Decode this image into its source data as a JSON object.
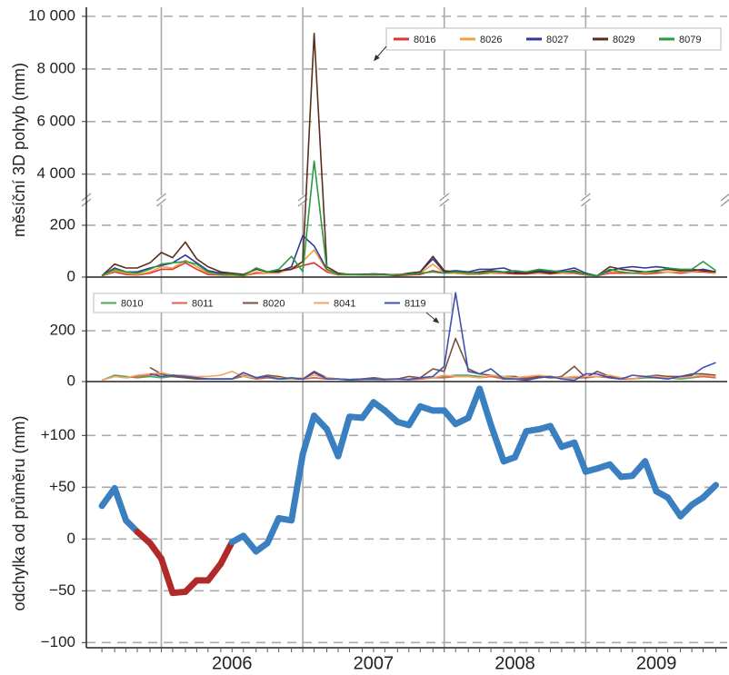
{
  "chart_data": {
    "type": "line",
    "x": [
      2005.58,
      2005.67,
      2005.75,
      2005.83,
      2005.92,
      2006.0,
      2006.08,
      2006.17,
      2006.25,
      2006.33,
      2006.42,
      2006.5,
      2006.58,
      2006.67,
      2006.75,
      2006.83,
      2006.92,
      2007.0,
      2007.08,
      2007.17,
      2007.25,
      2007.33,
      2007.42,
      2007.5,
      2007.58,
      2007.67,
      2007.75,
      2007.83,
      2007.92,
      2008.0,
      2008.08,
      2008.17,
      2008.25,
      2008.33,
      2008.42,
      2008.5,
      2008.58,
      2008.67,
      2008.75,
      2008.83,
      2008.92,
      2009.0,
      2009.08,
      2009.17,
      2009.25,
      2009.33,
      2009.42,
      2009.5,
      2009.58,
      2009.67,
      2009.75,
      2009.83,
      2009.92
    ],
    "xlim": [
      2005.47,
      2010.0
    ],
    "xgrid": [
      2006,
      2007,
      2008,
      2009
    ],
    "xticks": [
      {
        "value": 2006.5,
        "label": "2006"
      },
      {
        "value": 2007.5,
        "label": "2007"
      },
      {
        "value": 2008.5,
        "label": "2008"
      },
      {
        "value": 2009.5,
        "label": "2009"
      }
    ],
    "panels": [
      {
        "ylabel": "měsíční 3D pohyb (mm)",
        "ylim": [
          0,
          10000
        ],
        "ybreak": [
          270,
          3300
        ],
        "yticks": [
          0,
          200,
          {
            "value": 4000,
            "label": "4 000"
          },
          {
            "value": 6000,
            "label": "6 000"
          },
          {
            "value": 8000,
            "label": "8 000"
          },
          {
            "value": 10000,
            "label": "10 000"
          }
        ],
        "legend": "upper right",
        "series": [
          {
            "name": "8016",
            "color": "#e03434",
            "values": [
              5,
              20,
              10,
              8,
              15,
              30,
              30,
              55,
              30,
              10,
              8,
              5,
              5,
              15,
              15,
              20,
              30,
              45,
              55,
              20,
              8,
              8,
              8,
              8,
              8,
              5,
              8,
              10,
              25,
              15,
              15,
              10,
              12,
              15,
              15,
              12,
              12,
              15,
              12,
              15,
              15,
              8,
              5,
              15,
              15,
              15,
              12,
              15,
              20,
              15,
              20,
              20,
              15
            ]
          },
          {
            "name": "8026",
            "color": "#f5a040",
            "values": [
              5,
              25,
              15,
              10,
              20,
              40,
              35,
              65,
              40,
              15,
              10,
              5,
              5,
              20,
              15,
              15,
              35,
              60,
              105,
              25,
              8,
              8,
              8,
              10,
              8,
              8,
              10,
              15,
              50,
              15,
              15,
              10,
              15,
              15,
              20,
              15,
              15,
              15,
              15,
              15,
              20,
              8,
              5,
              20,
              20,
              15,
              15,
              20,
              20,
              20,
              20,
              25,
              15
            ]
          },
          {
            "name": "8027",
            "color": "#2b3a9c",
            "values": [
              5,
              35,
              20,
              20,
              35,
              45,
              55,
              85,
              55,
              25,
              15,
              10,
              5,
              35,
              20,
              20,
              40,
              160,
              120,
              30,
              10,
              10,
              10,
              12,
              10,
              8,
              12,
              20,
              70,
              20,
              25,
              20,
              30,
              30,
              35,
              20,
              20,
              25,
              20,
              25,
              35,
              15,
              5,
              25,
              35,
              40,
              35,
              40,
              35,
              25,
              25,
              30,
              20
            ]
          },
          {
            "name": "8029",
            "color": "#5a2e1e",
            "values": [
              5,
              50,
              35,
              35,
              55,
              95,
              75,
              135,
              70,
              40,
              20,
              15,
              10,
              30,
              20,
              25,
              30,
              60,
              9350,
              40,
              15,
              10,
              10,
              12,
              10,
              8,
              15,
              20,
              80,
              25,
              20,
              15,
              20,
              25,
              20,
              15,
              15,
              20,
              15,
              20,
              25,
              10,
              5,
              40,
              30,
              25,
              20,
              25,
              30,
              25,
              30,
              25,
              20
            ]
          },
          {
            "name": "8079",
            "color": "#2a9a42",
            "values": [
              5,
              30,
              20,
              15,
              30,
              50,
              55,
              60,
              50,
              20,
              10,
              10,
              5,
              35,
              20,
              30,
              80,
              300,
              4500,
              30,
              10,
              10,
              8,
              10,
              8,
              10,
              10,
              15,
              20,
              15,
              20,
              15,
              15,
              20,
              20,
              25,
              20,
              30,
              25,
              20,
              20,
              10,
              5,
              30,
              20,
              15,
              20,
              20,
              35,
              30,
              30,
              60,
              25
            ]
          }
        ]
      },
      {
        "ylim": [
          0,
          358
        ],
        "yticks": [
          0,
          200
        ],
        "legend": "upper left",
        "series": [
          {
            "name": "8010",
            "color": "#4aaa55",
            "values": [
              5,
              25,
              20,
              15,
              20,
              15,
              20,
              15,
              10,
              10,
              10,
              10,
              20,
              10,
              15,
              10,
              10,
              10,
              15,
              10,
              10,
              5,
              8,
              8,
              8,
              10,
              8,
              10,
              15,
              20,
              25,
              25,
              20,
              20,
              15,
              15,
              15,
              20,
              20,
              15,
              15,
              15,
              20,
              20,
              15,
              10,
              15,
              15,
              15,
              10,
              15,
              20,
              15
            ]
          },
          {
            "name": "8011",
            "color": "#e06050",
            "values": [
              5,
              20,
              15,
              20,
              25,
              30,
              25,
              20,
              15,
              10,
              10,
              10,
              25,
              10,
              15,
              15,
              10,
              10,
              15,
              10,
              10,
              8,
              8,
              10,
              10,
              10,
              8,
              10,
              15,
              15,
              20,
              20,
              15,
              20,
              10,
              10,
              15,
              20,
              15,
              15,
              15,
              15,
              20,
              15,
              10,
              10,
              20,
              15,
              20,
              15,
              20,
              20,
              15
            ]
          },
          {
            "name": "8020",
            "color": "#7a5040",
            "values": [
              null,
              null,
              null,
              null,
              55,
              30,
              20,
              15,
              10,
              10,
              10,
              10,
              35,
              15,
              25,
              20,
              10,
              10,
              40,
              15,
              10,
              8,
              10,
              15,
              10,
              10,
              20,
              15,
              50,
              40,
              170,
              50,
              30,
              25,
              20,
              20,
              10,
              20,
              15,
              20,
              60,
              15,
              40,
              20,
              15,
              10,
              20,
              25,
              20,
              20,
              30,
              30,
              25
            ]
          },
          {
            "name": "8041",
            "color": "#f0a868",
            "values": [
              5,
              20,
              15,
              25,
              30,
              35,
              25,
              25,
              20,
              20,
              25,
              40,
              20,
              15,
              20,
              15,
              10,
              15,
              25,
              15,
              10,
              8,
              10,
              10,
              10,
              10,
              10,
              15,
              15,
              25,
              20,
              20,
              15,
              25,
              20,
              15,
              20,
              25,
              20,
              15,
              20,
              20,
              20,
              25,
              15,
              10,
              20,
              20,
              15,
              15,
              20,
              25,
              20
            ]
          },
          {
            "name": "8119",
            "color": "#4050b0",
            "values": [
              null,
              null,
              null,
              null,
              30,
              20,
              25,
              20,
              15,
              10,
              10,
              10,
              35,
              15,
              20,
              10,
              15,
              10,
              35,
              10,
              10,
              8,
              10,
              10,
              8,
              10,
              8,
              15,
              20,
              60,
              350,
              40,
              30,
              50,
              10,
              10,
              5,
              15,
              20,
              10,
              5,
              30,
              30,
              15,
              10,
              25,
              20,
              15,
              10,
              20,
              25,
              55,
              75
            ]
          }
        ]
      },
      {
        "ylabel": "odchylka od průměru (mm)",
        "ylim": [
          -105,
          152
        ],
        "yticks": [
          {
            "value": -100,
            "label": "−100"
          },
          {
            "value": -50,
            "label": "−50"
          },
          0,
          {
            "value": 50,
            "label": "+50"
          },
          {
            "value": 100,
            "label": "+100"
          }
        ],
        "series": [
          {
            "values": [
              32,
              49,
              18,
              7,
              -4,
              -19,
              -52,
              -51,
              -40,
              -40,
              -24,
              -3,
              3,
              -12,
              -4,
              20,
              18,
              82,
              119,
              106,
              80,
              118,
              117,
              132,
              124,
              113,
              110,
              128,
              124,
              124,
              111,
              117,
              145,
              110,
              75,
              79,
              104,
              106,
              109,
              89,
              93,
              65,
              68,
              72,
              60,
              61,
              75,
              46,
              40,
              22,
              33,
              40,
              52
            ],
            "colors": [
              "#3a7fc0",
              "#3a7fc0",
              "#3a7fc0",
              "#b02a2a",
              "#b02a2a",
              "#b02a2a",
              "#b02a2a",
              "#b02a2a",
              "#b02a2a",
              "#b02a2a",
              "#b02a2a",
              "#3a7fc0",
              "#3a7fc0",
              "#3a7fc0",
              "#3a7fc0",
              "#3a7fc0",
              "#3a7fc0",
              "#3a7fc0",
              "#3a7fc0",
              "#3a7fc0",
              "#3a7fc0",
              "#3a7fc0",
              "#3a7fc0",
              "#3a7fc0",
              "#3a7fc0",
              "#3a7fc0",
              "#3a7fc0",
              "#3a7fc0",
              "#3a7fc0",
              "#3a7fc0",
              "#3a7fc0",
              "#3a7fc0",
              "#3a7fc0",
              "#3a7fc0",
              "#3a7fc0",
              "#3a7fc0",
              "#3a7fc0",
              "#3a7fc0",
              "#3a7fc0",
              "#3a7fc0",
              "#3a7fc0",
              "#3a7fc0",
              "#3a7fc0",
              "#3a7fc0",
              "#3a7fc0",
              "#3a7fc0",
              "#3a7fc0",
              "#3a7fc0",
              "#3a7fc0",
              "#3a7fc0",
              "#3a7fc0",
              "#3a7fc0",
              "#3a7fc0"
            ]
          }
        ]
      }
    ]
  }
}
